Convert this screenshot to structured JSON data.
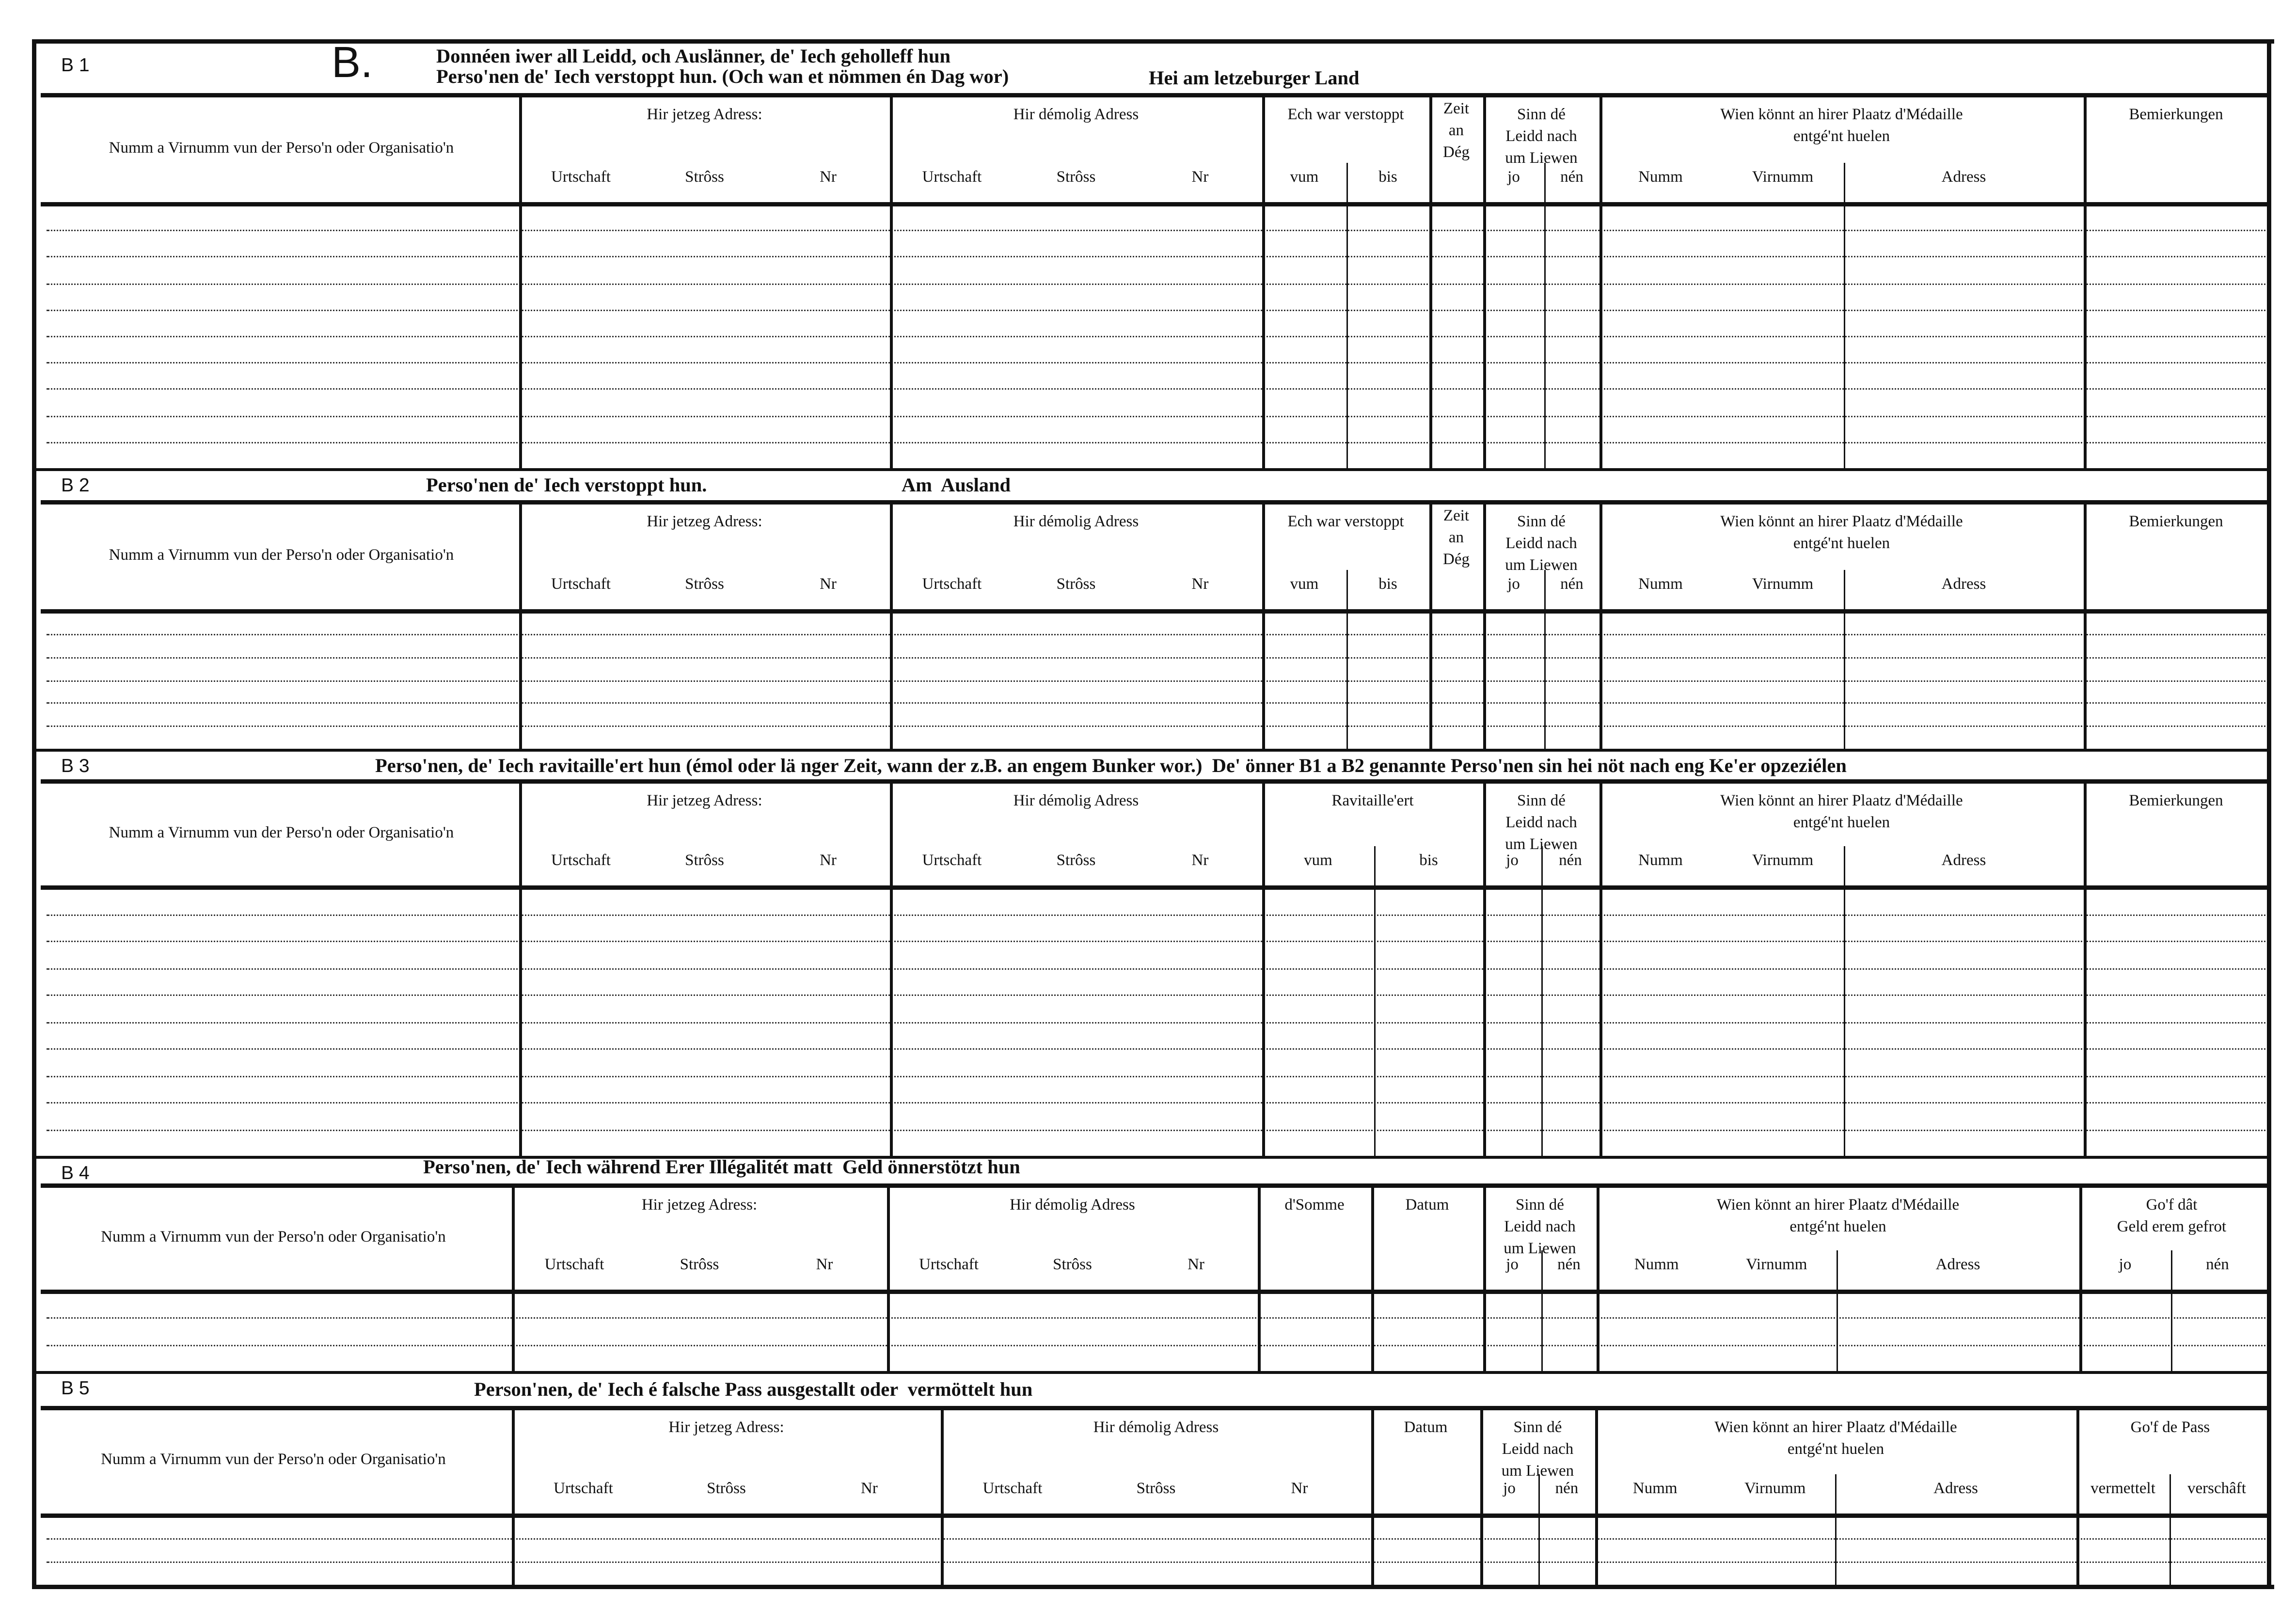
{
  "sections": [
    {
      "id": "B 1",
      "big_letter": "B.",
      "title": [
        "Donnéen iwer all Leidd, och Auslänner, de' Iech geholleff hun\nPerso'nen de' Iech verstoppt hun. (Och wan et nömmen én Dag wor)",
        "Hei am letzeburger Land"
      ],
      "columns": [
        {
          "label": "Numm a Virnumm vun der Perso'n oder Organisatio'n",
          "subs": []
        },
        {
          "label": "Hir jetzeg Adress:",
          "subs": [
            "Urtschaft",
            "Strôss",
            "Nr"
          ]
        },
        {
          "label": "Hir démolig Adress",
          "subs": [
            "Urtschaft",
            "Strôss",
            "Nr"
          ]
        },
        {
          "label": "Ech war verstoppt",
          "subs": [
            "vum",
            "bis"
          ]
        },
        {
          "label": "Zeit\nan\nDég",
          "subs": []
        },
        {
          "label": "Sinn  dé\nLeidd  nach\num Liewen",
          "subs": [
            "jo",
            "nén"
          ]
        },
        {
          "label": "Wien  könnt  an  hirer  Plaatz  d'Médaille\nentgé'nt huelen",
          "subs": [
            "Numm",
            "Virnumm",
            "Adress"
          ]
        },
        {
          "label": "Bemierkungen",
          "subs": []
        }
      ]
    },
    {
      "id": "B 2",
      "title": [
        "Perso'nen de' Iech verstoppt hun.",
        "Am  Ausland"
      ],
      "columns": [
        {
          "label": "Numm a Virnumm vun der Perso'n oder Organisatio'n",
          "subs": []
        },
        {
          "label": "Hir jetzeg Adress:",
          "subs": [
            "Urtschaft",
            "Strôss",
            "Nr"
          ]
        },
        {
          "label": "Hir démolig Adress",
          "subs": [
            "Urtschaft",
            "Strôss",
            "Nr"
          ]
        },
        {
          "label": "Ech war verstoppt",
          "subs": [
            "vum",
            "bis"
          ]
        },
        {
          "label": "Zeit\nan\nDég",
          "subs": []
        },
        {
          "label": "Sinn  dé\nLeidd  nach\num Liewen",
          "subs": [
            "jo",
            "nén"
          ]
        },
        {
          "label": "Wien  könnt  an  hirer  Plaatz  d'Médaille\nentgé'nt huelen",
          "subs": [
            "Numm",
            "Virnumm",
            "Adress"
          ]
        },
        {
          "label": "Bemierkungen",
          "subs": []
        }
      ]
    },
    {
      "id": "B 3",
      "title": [
        "Perso'nen, de' Iech ravitaille'ert hun (émol oder lä nger Zeit, wann der z.B. an engem Bunker wor.)  De' önner B1 a B2 genannte Perso'nen sin hei nöt nach eng Ke'er opzeziélen"
      ],
      "columns": [
        {
          "label": "Numm a Virnumm vun der Perso'n oder Organisatio'n",
          "subs": []
        },
        {
          "label": "Hir jetzeg Adress:",
          "subs": [
            "Urtschaft",
            "Strôss",
            "Nr"
          ]
        },
        {
          "label": "Hir démolig Adress",
          "subs": [
            "Urtschaft",
            "Strôss",
            "Nr"
          ]
        },
        {
          "label": "Ravitaille'ert",
          "subs": [
            "vum",
            "bis"
          ]
        },
        {
          "label": "Sinn  dé\nLeidd  nach\num Liewen",
          "subs": [
            "jo",
            "nén"
          ]
        },
        {
          "label": "Wien  könnt  an  hirer  Plaatz  d'Médaille\nentgé'nt huelen",
          "subs": [
            "Numm",
            "Virnumm",
            "Adress"
          ]
        },
        {
          "label": "Bemierkungen",
          "subs": []
        }
      ]
    },
    {
      "id": "B 4",
      "title": [
        "Perso'nen, de' Iech während Erer Illégalitét matt  Geld önnerstötzt hun"
      ],
      "columns": [
        {
          "label": "Numm a Virnumm vun der Perso'n oder Organisatio'n",
          "subs": []
        },
        {
          "label": "Hir jetzeg Adress:",
          "subs": [
            "Urtschaft",
            "Strôss",
            "Nr"
          ]
        },
        {
          "label": "Hir démolig Adress",
          "subs": [
            "Urtschaft",
            "Strôss",
            "Nr"
          ]
        },
        {
          "label": "d'Somme",
          "subs": []
        },
        {
          "label": "Datum",
          "subs": []
        },
        {
          "label": "Sinn  dé\nLeidd  nach\num Liewen",
          "subs": [
            "jo",
            "nén"
          ]
        },
        {
          "label": "Wien  könnt  an  hirer  Plaatz  d'Médaille\nentgé'nt huelen",
          "subs": [
            "Numm",
            "Virnumm",
            "Adress"
          ]
        },
        {
          "label": "Go'f  dât\nGeld  erem  gefrot",
          "subs": [
            "jo",
            "nén"
          ]
        }
      ]
    },
    {
      "id": "B 5",
      "title": [
        "Person'nen, de' Iech é falsche Pass ausgestallt oder  vermöttelt hun"
      ],
      "columns": [
        {
          "label": "Numm a Virnumm vun der Perso'n oder Organisatio'n",
          "subs": []
        },
        {
          "label": "Hir jetzeg Adress:",
          "subs": [
            "Urtschaft",
            "Strôss",
            "Nr"
          ]
        },
        {
          "label": "Hir démolig Adress",
          "subs": [
            "Urtschaft",
            "Strôss",
            "Nr"
          ]
        },
        {
          "label": "Datum",
          "subs": []
        },
        {
          "label": "Sinn  dé\nLeidd  nach\num Liewen",
          "subs": [
            "jo",
            "nén"
          ]
        },
        {
          "label": "Wien  könnt  an  hirer  Plaatz  d'Médaille\nentgé'nt huelen",
          "subs": [
            "Numm",
            "Virnumm",
            "Adress"
          ]
        },
        {
          "label": "Go'f de Pass",
          "subs": [
            "vermettelt",
            "verschâft"
          ]
        }
      ]
    }
  ]
}
